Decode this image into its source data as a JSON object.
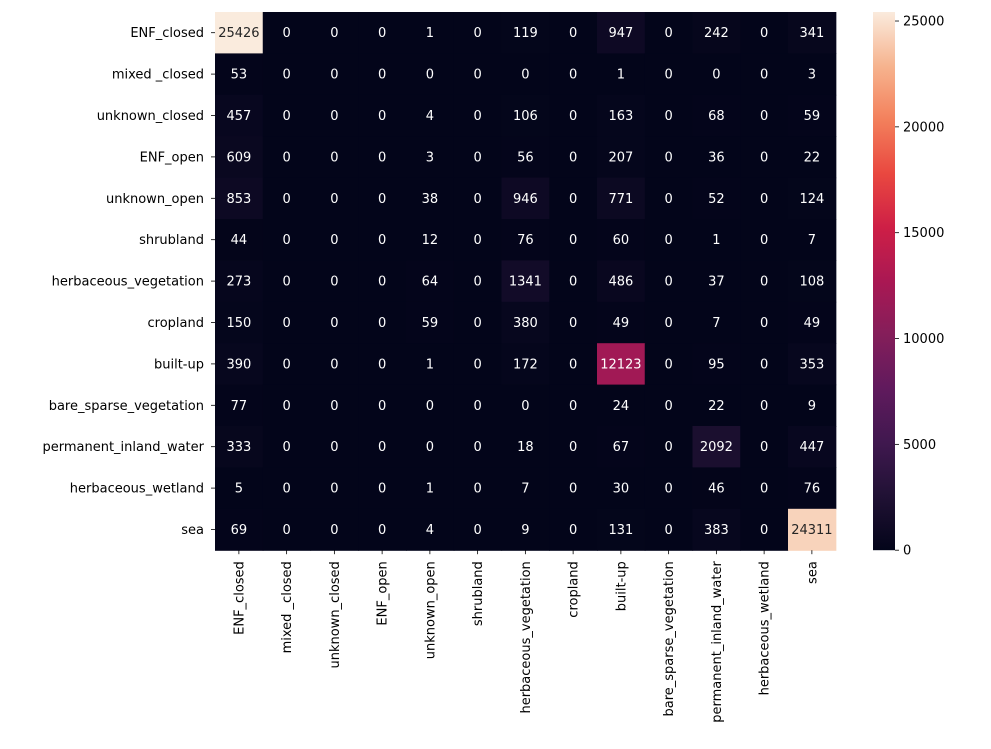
{
  "chart_data": {
    "type": "heatmap",
    "title": "",
    "xlabel": "",
    "ylabel": "",
    "row_labels": [
      "ENF_closed",
      "mixed _closed",
      "unknown_closed",
      "ENF_open",
      "unknown_open",
      "shrubland",
      "herbaceous_vegetation",
      "cropland",
      "built-up",
      "bare_sparse_vegetation",
      "permanent_inland_water",
      "herbaceous_wetland",
      "sea"
    ],
    "col_labels": [
      "ENF_closed",
      "mixed _closed",
      "unknown_closed",
      "ENF_open",
      "unknown_open",
      "shrubland",
      "herbaceous_vegetation",
      "cropland",
      "built-up",
      "bare_sparse_vegetation",
      "permanent_inland_water",
      "herbaceous_wetland",
      "sea"
    ],
    "values": [
      [
        25426,
        0,
        0,
        0,
        1,
        0,
        119,
        0,
        947,
        0,
        242,
        0,
        341
      ],
      [
        53,
        0,
        0,
        0,
        0,
        0,
        0,
        0,
        1,
        0,
        0,
        0,
        3
      ],
      [
        457,
        0,
        0,
        0,
        4,
        0,
        106,
        0,
        163,
        0,
        68,
        0,
        59
      ],
      [
        609,
        0,
        0,
        0,
        3,
        0,
        56,
        0,
        207,
        0,
        36,
        0,
        22
      ],
      [
        853,
        0,
        0,
        0,
        38,
        0,
        946,
        0,
        771,
        0,
        52,
        0,
        124
      ],
      [
        44,
        0,
        0,
        0,
        12,
        0,
        76,
        0,
        60,
        0,
        1,
        0,
        7
      ],
      [
        273,
        0,
        0,
        0,
        64,
        0,
        1341,
        0,
        486,
        0,
        37,
        0,
        108
      ],
      [
        150,
        0,
        0,
        0,
        59,
        0,
        380,
        0,
        49,
        0,
        7,
        0,
        49
      ],
      [
        390,
        0,
        0,
        0,
        1,
        0,
        172,
        0,
        12123,
        0,
        95,
        0,
        353
      ],
      [
        77,
        0,
        0,
        0,
        0,
        0,
        0,
        0,
        24,
        0,
        22,
        0,
        9
      ],
      [
        333,
        0,
        0,
        0,
        0,
        0,
        18,
        0,
        67,
        0,
        2092,
        0,
        447
      ],
      [
        5,
        0,
        0,
        0,
        1,
        0,
        7,
        0,
        30,
        0,
        46,
        0,
        76
      ],
      [
        69,
        0,
        0,
        0,
        4,
        0,
        9,
        0,
        131,
        0,
        383,
        0,
        24311
      ]
    ],
    "colormap": "rocket",
    "vmin": 0,
    "vmax": 25426,
    "colorbar_ticks": [
      0,
      5000,
      10000,
      15000,
      20000,
      25000
    ],
    "annotations": true,
    "grid": false
  }
}
